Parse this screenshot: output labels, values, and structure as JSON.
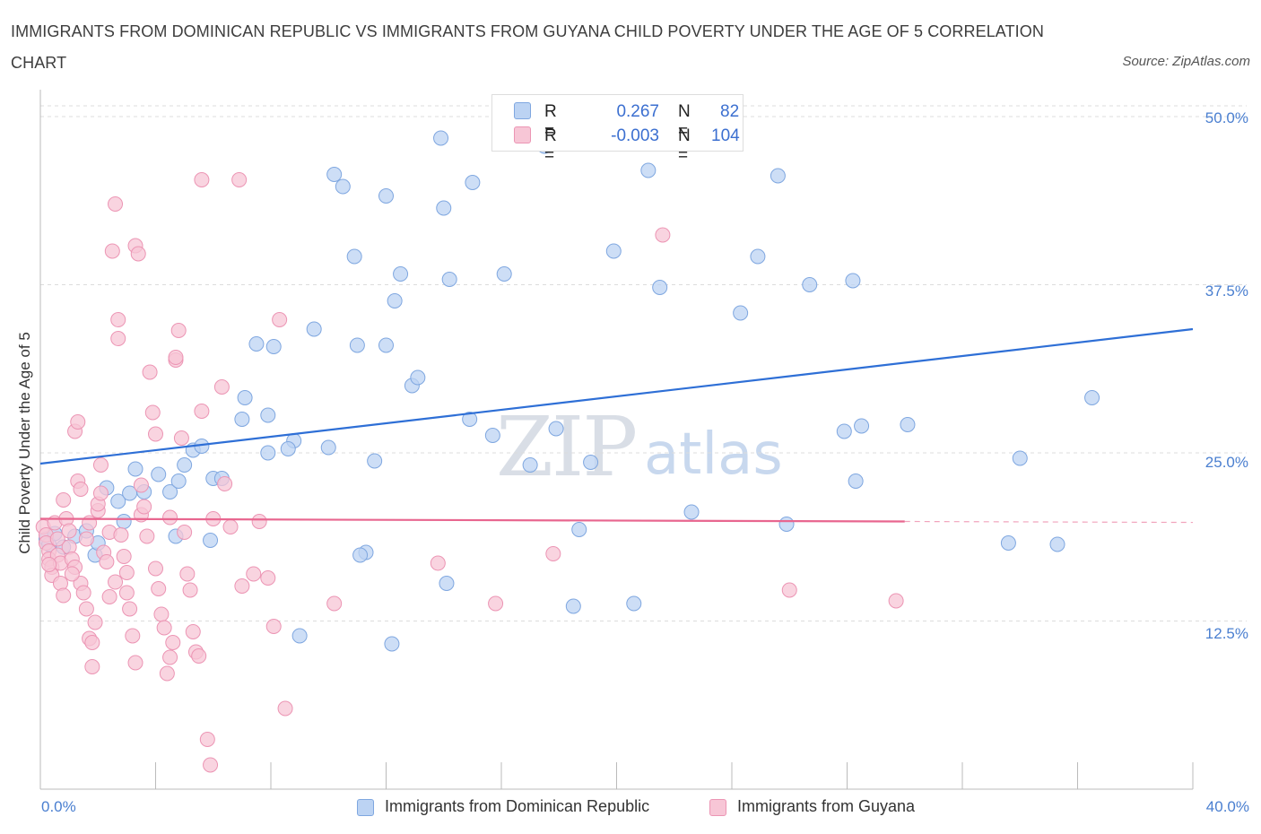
{
  "header": {
    "title": "IMMIGRANTS FROM DOMINICAN REPUBLIC VS IMMIGRANTS FROM GUYANA CHILD POVERTY UNDER THE AGE OF 5 CORRELATION CHART",
    "source": "Source: ZipAtlas.com"
  },
  "watermark": {
    "zip": "ZIP",
    "atlas": "atlas"
  },
  "legend": {
    "series1": {
      "r_label": "R =",
      "r_value": "0.267",
      "n_label": "N =",
      "n_value": "82"
    },
    "series2": {
      "r_label": "R =",
      "r_value": "-0.003",
      "n_label": "N =",
      "n_value": "104"
    }
  },
  "colors": {
    "blue_fill": "#bcd3f3",
    "blue_stroke": "#7fa7e0",
    "blue_line": "#2e6fd6",
    "pink_fill": "#f7c6d6",
    "pink_stroke": "#ec95b4",
    "pink_line": "#e8668f",
    "tick_text": "#4a7fd0",
    "grid": "#dcdcdc"
  },
  "chart_data": {
    "type": "scatter",
    "title": "IMMIGRANTS FROM DOMINICAN REPUBLIC VS IMMIGRANTS FROM GUYANA CHILD POVERTY UNDER THE AGE OF 5 CORRELATION CHART",
    "xlabel": "",
    "ylabel": "Child Poverty Under the Age of 5",
    "xlim": [
      0,
      40
    ],
    "ylim": [
      0,
      52
    ],
    "x_tick_labels": [
      "0.0%",
      "40.0%"
    ],
    "y_ticks": [
      12.5,
      25.0,
      37.5,
      50.0
    ],
    "y_tick_labels": [
      "12.5%",
      "25.0%",
      "37.5%",
      "50.0%"
    ],
    "grid": "horizontal dashed",
    "legend_position": "top-center and bottom",
    "series": [
      {
        "name": "Immigrants from Dominican Republic",
        "color": "#bcd3f3",
        "trend": {
          "x": [
            0,
            40
          ],
          "y": [
            24.2,
            34.2
          ]
        },
        "points": [
          [
            0.2,
            18.6
          ],
          [
            0.3,
            18.2
          ],
          [
            0.5,
            19.0
          ],
          [
            0.8,
            18.0
          ],
          [
            1.2,
            18.8
          ],
          [
            1.6,
            19.2
          ],
          [
            1.9,
            17.4
          ],
          [
            2.0,
            18.3
          ],
          [
            2.3,
            22.4
          ],
          [
            2.7,
            21.4
          ],
          [
            2.9,
            19.9
          ],
          [
            3.1,
            22.0
          ],
          [
            3.6,
            22.1
          ],
          [
            3.3,
            23.8
          ],
          [
            4.1,
            23.4
          ],
          [
            4.5,
            22.1
          ],
          [
            4.8,
            22.9
          ],
          [
            5.0,
            24.1
          ],
          [
            5.3,
            25.2
          ],
          [
            5.6,
            25.5
          ],
          [
            6.0,
            23.1
          ],
          [
            6.3,
            23.1
          ],
          [
            4.7,
            18.8
          ],
          [
            5.9,
            18.5
          ],
          [
            7.1,
            29.1
          ],
          [
            7.0,
            27.5
          ],
          [
            7.9,
            27.8
          ],
          [
            7.9,
            25.0
          ],
          [
            7.5,
            33.1
          ],
          [
            8.1,
            32.9
          ],
          [
            8.8,
            25.9
          ],
          [
            8.6,
            25.3
          ],
          [
            9.5,
            34.2
          ],
          [
            10.0,
            25.4
          ],
          [
            10.5,
            44.8
          ],
          [
            10.2,
            45.7
          ],
          [
            10.9,
            39.6
          ],
          [
            11.0,
            33.0
          ],
          [
            11.6,
            24.4
          ],
          [
            11.3,
            17.6
          ],
          [
            12.0,
            44.1
          ],
          [
            12.3,
            36.3
          ],
          [
            12.5,
            38.3
          ],
          [
            12.0,
            33.0
          ],
          [
            12.9,
            30.0
          ],
          [
            13.1,
            30.6
          ],
          [
            12.2,
            10.8
          ],
          [
            9.0,
            11.4
          ],
          [
            11.1,
            17.4
          ],
          [
            14.0,
            43.2
          ],
          [
            13.9,
            48.4
          ],
          [
            14.2,
            37.9
          ],
          [
            15.0,
            45.1
          ],
          [
            14.9,
            27.5
          ],
          [
            15.7,
            26.3
          ],
          [
            16.1,
            38.3
          ],
          [
            14.1,
            15.3
          ],
          [
            17.0,
            24.1
          ],
          [
            17.9,
            26.8
          ],
          [
            17.5,
            47.8
          ],
          [
            18.7,
            19.3
          ],
          [
            18.5,
            13.6
          ],
          [
            19.1,
            24.3
          ],
          [
            19.9,
            40.0
          ],
          [
            20.6,
            13.8
          ],
          [
            21.1,
            46.0
          ],
          [
            21.5,
            37.3
          ],
          [
            22.6,
            20.6
          ],
          [
            24.3,
            35.4
          ],
          [
            24.9,
            39.6
          ],
          [
            25.6,
            45.6
          ],
          [
            25.9,
            19.7
          ],
          [
            26.7,
            37.5
          ],
          [
            27.9,
            26.6
          ],
          [
            28.2,
            37.8
          ],
          [
            28.3,
            22.9
          ],
          [
            28.5,
            27.0
          ],
          [
            30.1,
            27.1
          ],
          [
            33.6,
            18.3
          ],
          [
            34.0,
            24.6
          ],
          [
            35.3,
            18.2
          ],
          [
            36.5,
            29.1
          ]
        ]
      },
      {
        "name": "Immigrants from Guyana",
        "color": "#f7c6d6",
        "trend": {
          "x": [
            0,
            30
          ],
          "y": [
            20.1,
            19.9
          ]
        },
        "points": [
          [
            0.1,
            19.5
          ],
          [
            0.2,
            18.9
          ],
          [
            0.2,
            18.3
          ],
          [
            0.3,
            17.7
          ],
          [
            0.3,
            17.1
          ],
          [
            0.4,
            16.5
          ],
          [
            0.4,
            15.9
          ],
          [
            0.5,
            19.8
          ],
          [
            0.6,
            18.6
          ],
          [
            0.6,
            17.4
          ],
          [
            0.7,
            16.8
          ],
          [
            0.7,
            15.3
          ],
          [
            0.8,
            14.4
          ],
          [
            0.8,
            21.5
          ],
          [
            0.9,
            20.1
          ],
          [
            1.0,
            19.2
          ],
          [
            1.0,
            18.0
          ],
          [
            1.1,
            17.1
          ],
          [
            1.2,
            16.5
          ],
          [
            1.2,
            26.6
          ],
          [
            1.3,
            27.3
          ],
          [
            1.3,
            22.9
          ],
          [
            1.4,
            22.3
          ],
          [
            1.4,
            15.3
          ],
          [
            1.5,
            14.6
          ],
          [
            1.6,
            13.4
          ],
          [
            1.6,
            18.6
          ],
          [
            1.7,
            19.8
          ],
          [
            1.7,
            11.2
          ],
          [
            1.8,
            9.1
          ],
          [
            1.8,
            10.9
          ],
          [
            1.9,
            12.4
          ],
          [
            2.0,
            20.7
          ],
          [
            2.0,
            21.2
          ],
          [
            2.1,
            22.0
          ],
          [
            2.1,
            24.1
          ],
          [
            2.2,
            17.6
          ],
          [
            2.3,
            16.9
          ],
          [
            2.4,
            14.3
          ],
          [
            2.4,
            19.1
          ],
          [
            2.5,
            40.0
          ],
          [
            2.6,
            43.5
          ],
          [
            2.7,
            33.5
          ],
          [
            2.7,
            34.9
          ],
          [
            2.8,
            18.9
          ],
          [
            2.9,
            17.3
          ],
          [
            3.0,
            16.1
          ],
          [
            3.0,
            14.6
          ],
          [
            3.1,
            13.4
          ],
          [
            3.2,
            11.4
          ],
          [
            3.3,
            9.4
          ],
          [
            3.3,
            40.4
          ],
          [
            3.4,
            39.8
          ],
          [
            3.5,
            22.6
          ],
          [
            3.5,
            20.4
          ],
          [
            3.7,
            18.8
          ],
          [
            3.8,
            31.0
          ],
          [
            3.9,
            28.0
          ],
          [
            4.0,
            26.4
          ],
          [
            4.0,
            16.4
          ],
          [
            4.1,
            14.9
          ],
          [
            4.2,
            13.0
          ],
          [
            4.3,
            12.0
          ],
          [
            4.4,
            8.6
          ],
          [
            4.5,
            9.8
          ],
          [
            4.5,
            20.2
          ],
          [
            4.7,
            31.9
          ],
          [
            4.7,
            32.1
          ],
          [
            4.8,
            34.1
          ],
          [
            4.9,
            26.1
          ],
          [
            5.0,
            19.1
          ],
          [
            5.1,
            16.0
          ],
          [
            5.2,
            14.8
          ],
          [
            5.3,
            11.7
          ],
          [
            5.4,
            10.2
          ],
          [
            5.5,
            9.9
          ],
          [
            5.6,
            28.1
          ],
          [
            5.6,
            45.3
          ],
          [
            5.8,
            3.7
          ],
          [
            5.9,
            1.8
          ],
          [
            6.0,
            20.1
          ],
          [
            6.3,
            29.9
          ],
          [
            6.4,
            22.7
          ],
          [
            6.6,
            19.5
          ],
          [
            6.9,
            45.3
          ],
          [
            7.0,
            15.1
          ],
          [
            7.4,
            16.0
          ],
          [
            7.6,
            19.9
          ],
          [
            7.9,
            15.7
          ],
          [
            8.1,
            12.1
          ],
          [
            8.3,
            34.9
          ],
          [
            8.5,
            6.0
          ],
          [
            10.2,
            13.8
          ],
          [
            13.8,
            16.8
          ],
          [
            15.8,
            13.8
          ],
          [
            17.8,
            17.5
          ],
          [
            21.6,
            41.2
          ],
          [
            26.0,
            14.8
          ],
          [
            29.7,
            14.0
          ],
          [
            0.3,
            16.7
          ],
          [
            1.1,
            16.0
          ],
          [
            2.6,
            15.4
          ],
          [
            3.6,
            21.0
          ],
          [
            4.6,
            10.9
          ]
        ]
      }
    ]
  }
}
